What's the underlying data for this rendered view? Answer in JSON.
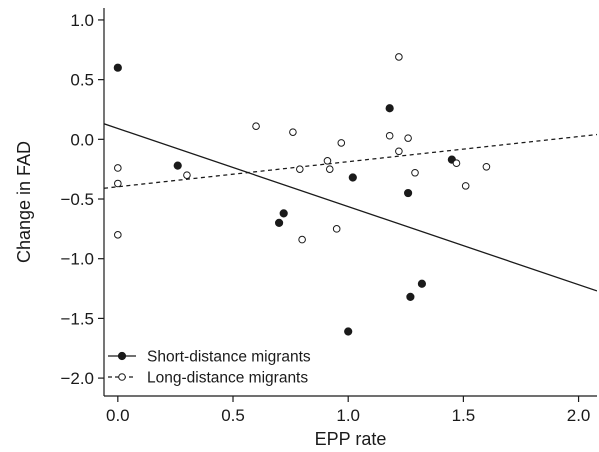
{
  "chart_data": {
    "type": "scatter",
    "xlabel": "EPP rate",
    "ylabel": "Change in FAD",
    "xlim": [
      -0.06,
      2.08
    ],
    "ylim": [
      -2.15,
      1.1
    ],
    "x_ticks": [
      0.0,
      0.5,
      1.0,
      1.5,
      2.0
    ],
    "x_tick_labels": [
      "0.0",
      "0.5",
      "1.0",
      "1.5",
      "2.0"
    ],
    "y_ticks": [
      1.0,
      0.5,
      0.0,
      -0.5,
      -1.0,
      -1.5,
      -2.0
    ],
    "y_tick_labels": [
      "1.0",
      "0.5",
      "0.0",
      "−0.5",
      "−1.0",
      "−1.5",
      "−2.0"
    ],
    "grid": false,
    "legend_position": "bottom-left",
    "series": [
      {
        "name": "Short-distance migrants",
        "marker": "filled-circle",
        "line_style": "solid",
        "color": "#1a1a1a",
        "points": [
          [
            0.0,
            0.6
          ],
          [
            0.26,
            -0.22
          ],
          [
            0.7,
            -0.7
          ],
          [
            0.72,
            -0.62
          ],
          [
            1.0,
            -1.61
          ],
          [
            1.02,
            -0.32
          ],
          [
            1.18,
            0.26
          ],
          [
            1.26,
            -0.45
          ],
          [
            1.27,
            -1.32
          ],
          [
            1.32,
            -1.21
          ],
          [
            1.45,
            -0.17
          ]
        ],
        "trend": {
          "x": [
            -0.06,
            2.08
          ],
          "y": [
            0.13,
            -1.27
          ]
        }
      },
      {
        "name": "Long-distance migrants",
        "marker": "open-circle",
        "line_style": "dashed",
        "color": "#1a1a1a",
        "points": [
          [
            0.0,
            -0.24
          ],
          [
            0.0,
            -0.37
          ],
          [
            0.0,
            -0.8
          ],
          [
            0.3,
            -0.3
          ],
          [
            0.6,
            0.11
          ],
          [
            0.76,
            0.06
          ],
          [
            0.79,
            -0.25
          ],
          [
            0.8,
            -0.84
          ],
          [
            0.91,
            -0.18
          ],
          [
            0.92,
            -0.25
          ],
          [
            0.95,
            -0.75
          ],
          [
            0.97,
            -0.03
          ],
          [
            1.18,
            0.03
          ],
          [
            1.22,
            -0.1
          ],
          [
            1.22,
            0.69
          ],
          [
            1.26,
            0.01
          ],
          [
            1.29,
            -0.28
          ],
          [
            1.47,
            -0.2
          ],
          [
            1.51,
            -0.39
          ],
          [
            1.6,
            -0.23
          ]
        ],
        "trend": {
          "x": [
            -0.06,
            2.08
          ],
          "y": [
            -0.41,
            0.04
          ]
        }
      }
    ]
  }
}
